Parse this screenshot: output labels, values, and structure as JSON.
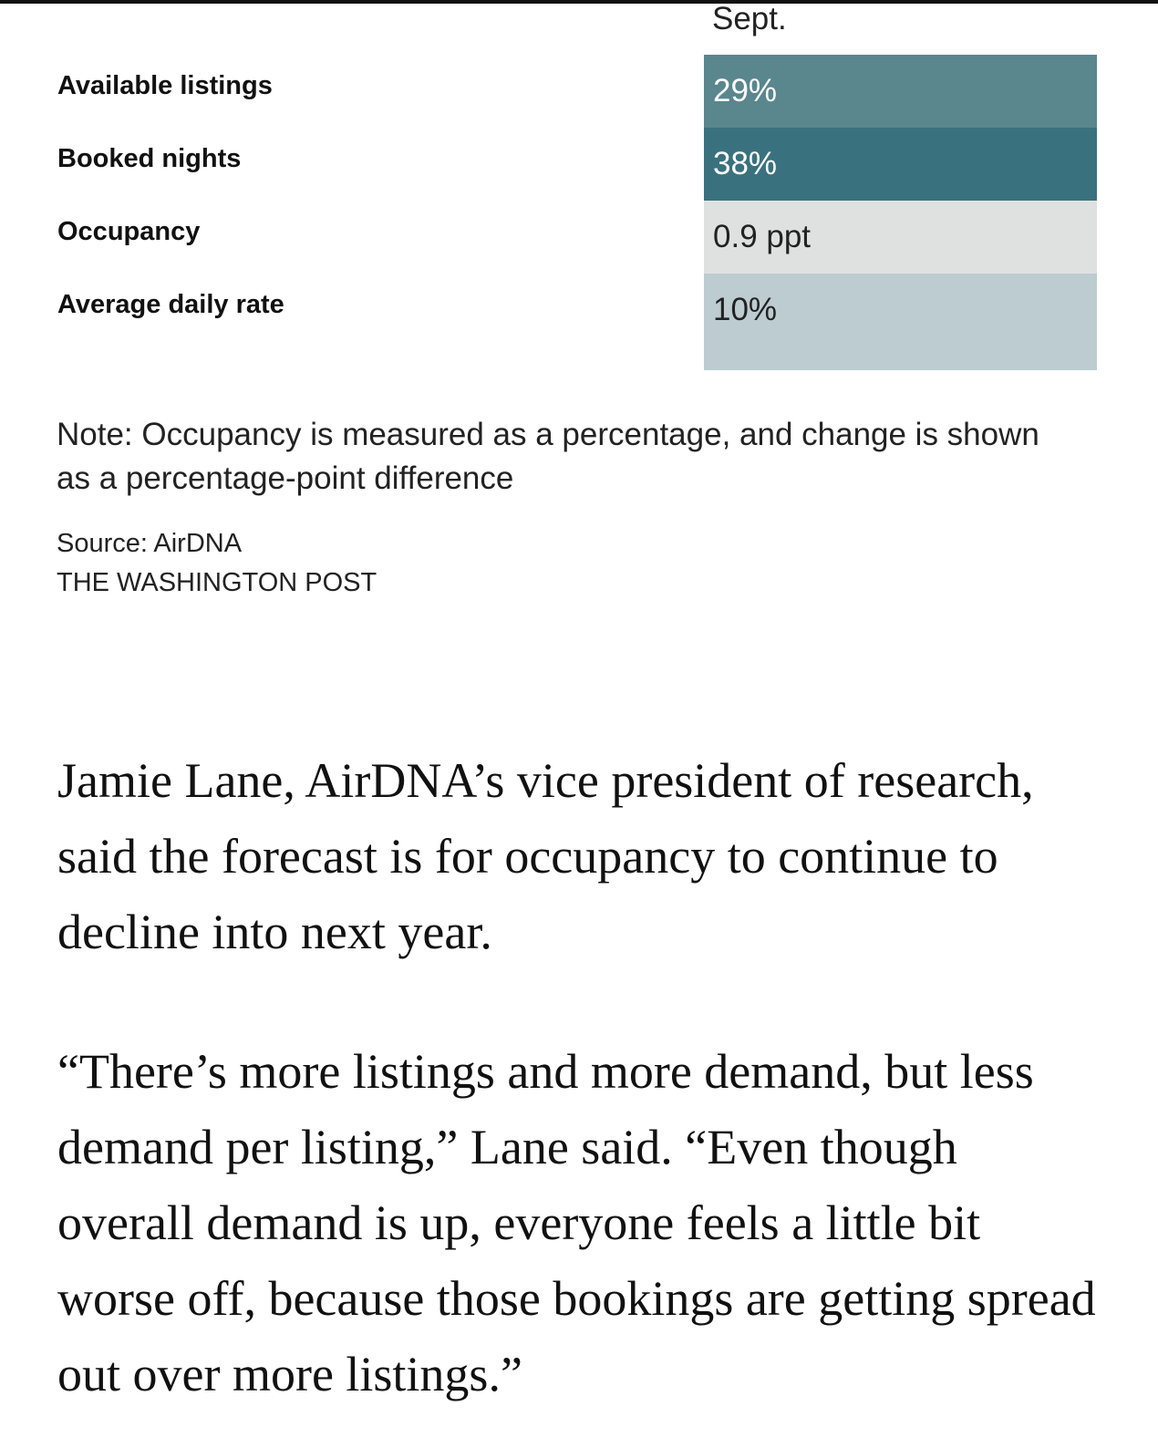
{
  "table": {
    "column_header": "Sept.",
    "rows": [
      {
        "label": "Available listings",
        "value": "29%",
        "fill": "#5a868e",
        "text_color": "#ffffff"
      },
      {
        "label": "Booked nights",
        "value": "38%",
        "fill": "#3a717f",
        "text_color": "#ffffff"
      },
      {
        "label": "Occupancy",
        "value": "0.9 ppt",
        "fill": "#dfe1e0",
        "text_color": "#222222"
      },
      {
        "label": "Average daily rate",
        "value": "10%",
        "fill": "#bcccd0",
        "text_color": "#222222"
      }
    ]
  },
  "note": "Note: Occupancy is measured as a percentage, and change is shown as a percentage-point difference",
  "source": "Source: AirDNA",
  "credit": "THE WASHINGTON POST",
  "article": {
    "paragraphs": [
      "Jamie Lane, AirDNA’s vice president of research, said the forecast is for occupancy to continue to decline into next year.",
      "“There’s more listings and more demand, but less demand per listing,” Lane said. “Even though overall demand is up, everyone feels a little bit worse off, because those bookings are getting spread out over more listings.”"
    ]
  }
}
